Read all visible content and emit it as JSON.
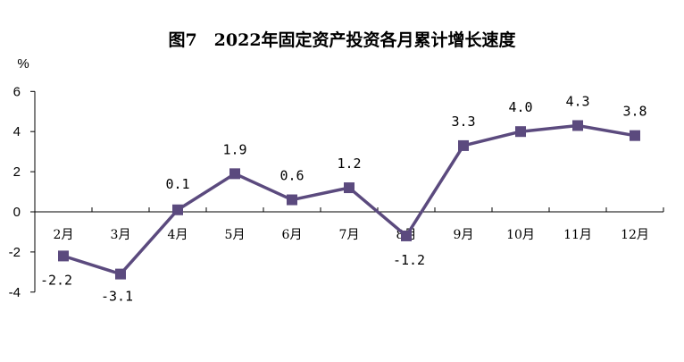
{
  "chart_data": {
    "type": "line",
    "title": "图7　2022年固定资产投资各月累计增长速度",
    "ylabel": "%",
    "xlabel": "",
    "categories": [
      "2月",
      "3月",
      "4月",
      "5月",
      "6月",
      "7月",
      "8月",
      "9月",
      "10月",
      "11月",
      "12月"
    ],
    "values": [
      -2.2,
      -3.1,
      0.1,
      1.9,
      0.6,
      1.2,
      -1.2,
      3.3,
      4.0,
      4.3,
      3.8
    ],
    "data_labels": [
      "-2.2",
      "-3.1",
      "0.1",
      "1.9",
      "0.6",
      "1.2",
      "-1.2",
      "3.3",
      "4.0",
      "4.3",
      "3.8"
    ],
    "ylim": [
      -4,
      6
    ],
    "yticks": [
      "6",
      "4",
      "2",
      "0",
      "-2",
      "-4"
    ],
    "grid": false,
    "legend": "none",
    "color": "#5b4a7e",
    "marker": "square"
  }
}
